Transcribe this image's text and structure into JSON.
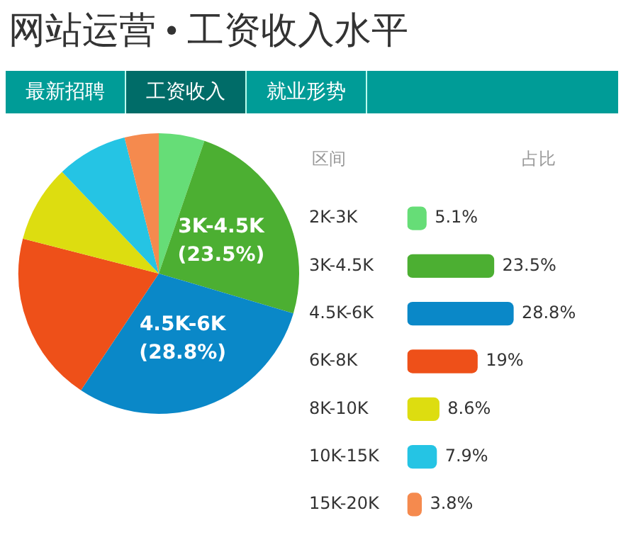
{
  "chart_data": [
    {
      "type": "pie",
      "title": "网站运营 • 工资收入水平",
      "categories": [
        null,
        "3K-4.5K",
        "4.5K-6K",
        null,
        null,
        null,
        null
      ],
      "values": [
        5.1,
        23.5,
        28.8,
        19,
        8.6,
        7.9,
        3.8
      ],
      "colors": [
        "#66dd77",
        "#4caf32",
        "#0a88c8",
        "#ee5019",
        "#dddd10",
        "#25c4e4",
        "#f58a4e"
      ],
      "value_labels": [
        null,
        "(23.5%)",
        "(28.8%)",
        null,
        null,
        null,
        null
      ],
      "annotations": [
        "最新招聘",
        "工资收入",
        "就业形势"
      ]
    },
    {
      "type": "bar",
      "orientation": "horizontal",
      "ylabel": "区间",
      "xlabel": "占比",
      "categories": [
        "2K-3K",
        "3K-4.5K",
        "4.5K-6K",
        "6K-8K",
        "8K-10K",
        "10K-15K",
        "15K-20K"
      ],
      "values": [
        5.1,
        23.5,
        28.8,
        19,
        8.6,
        7.9,
        3.8
      ],
      "colors": [
        "#66dd77",
        "#4caf32",
        "#0a88c8",
        "#ee5019",
        "#dddd10",
        "#25c4e4",
        "#f58a4e"
      ],
      "value_labels": [
        "5.1%",
        "23.5%",
        "28.8%",
        "19%",
        "8.6%",
        "7.9%",
        "3.8%"
      ]
    }
  ]
}
